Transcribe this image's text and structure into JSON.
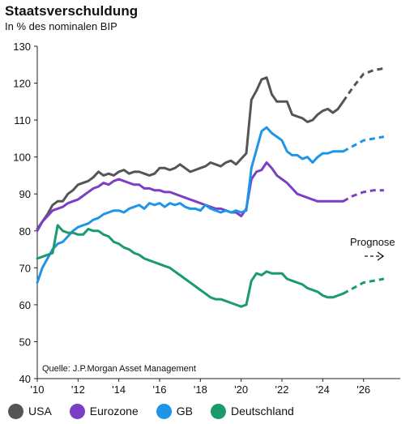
{
  "chart_data": {
    "type": "line",
    "title": "Staatsverschuldung",
    "subtitle": "In % des nominalen BIP",
    "source": "Quelle: J.P.Morgan Asset Management",
    "annotation": "Prognose",
    "forecast_start": 2025,
    "ylim": [
      40,
      130
    ],
    "yticks": [
      40,
      50,
      60,
      70,
      80,
      90,
      100,
      110,
      120,
      130
    ],
    "xlim": [
      2010,
      2027.8
    ],
    "xticks": [
      {
        "value": 2010,
        "label": "'10"
      },
      {
        "value": 2012,
        "label": "'12"
      },
      {
        "value": 2014,
        "label": "'14"
      },
      {
        "value": 2016,
        "label": "'16"
      },
      {
        "value": 2018,
        "label": "'18"
      },
      {
        "value": 2020,
        "label": "'20"
      },
      {
        "value": 2022,
        "label": "'22"
      },
      {
        "value": 2024,
        "label": "'24"
      },
      {
        "value": 2026,
        "label": "'26"
      }
    ],
    "grid": false,
    "legend_position": "bottom",
    "series": [
      {
        "name": "USA",
        "color": "#555555",
        "x": [
          2010,
          2010.25,
          2010.5,
          2010.75,
          2011,
          2011.25,
          2011.5,
          2011.75,
          2012,
          2012.25,
          2012.5,
          2012.75,
          2013,
          2013.25,
          2013.5,
          2013.75,
          2014,
          2014.25,
          2014.5,
          2014.75,
          2015,
          2015.25,
          2015.5,
          2015.75,
          2016,
          2016.25,
          2016.5,
          2016.75,
          2017,
          2017.25,
          2017.5,
          2017.75,
          2018,
          2018.25,
          2018.5,
          2018.75,
          2019,
          2019.25,
          2019.5,
          2019.75,
          2020,
          2020.25,
          2020.5,
          2020.75,
          2021,
          2021.25,
          2021.5,
          2021.75,
          2022,
          2022.25,
          2022.5,
          2022.75,
          2023,
          2023.25,
          2023.5,
          2023.75,
          2024,
          2024.25,
          2024.5,
          2024.75,
          2025,
          2025.5,
          2026,
          2026.5,
          2027
        ],
        "y": [
          80.5,
          82.5,
          84.5,
          87,
          88,
          88,
          90,
          91,
          92.5,
          93,
          93.5,
          94.5,
          96,
          95,
          95.5,
          95,
          96,
          96.5,
          95.5,
          96,
          96,
          95.5,
          95,
          95.5,
          97,
          97,
          96.5,
          97,
          98,
          97,
          96,
          96.5,
          97,
          97.5,
          98.5,
          98,
          97.5,
          98.5,
          99,
          98,
          99.5,
          101,
          115.5,
          118,
          121,
          121.5,
          117,
          115,
          115,
          115,
          111.5,
          111,
          110.5,
          109.5,
          110,
          111.5,
          112.5,
          113,
          112,
          113,
          115,
          119,
          122.5,
          123.5,
          124
        ]
      },
      {
        "name": "Eurozone",
        "color": "#7b3fc6",
        "x": [
          2010,
          2010.25,
          2010.5,
          2010.75,
          2011,
          2011.25,
          2011.5,
          2011.75,
          2012,
          2012.25,
          2012.5,
          2012.75,
          2013,
          2013.25,
          2013.5,
          2013.75,
          2014,
          2014.25,
          2014.5,
          2014.75,
          2015,
          2015.25,
          2015.5,
          2015.75,
          2016,
          2016.25,
          2016.5,
          2016.75,
          2017,
          2017.25,
          2017.5,
          2017.75,
          2018,
          2018.25,
          2018.5,
          2018.75,
          2019,
          2019.25,
          2019.5,
          2019.75,
          2020,
          2020.25,
          2020.5,
          2020.75,
          2021,
          2021.25,
          2021.5,
          2021.75,
          2022,
          2022.25,
          2022.5,
          2022.75,
          2023,
          2023.25,
          2023.5,
          2023.75,
          2024,
          2024.25,
          2024.5,
          2024.75,
          2025,
          2025.5,
          2026,
          2026.5,
          2027
        ],
        "y": [
          80,
          82.5,
          84,
          85.5,
          86,
          86.5,
          87.5,
          88,
          88.5,
          89.5,
          90.5,
          91.5,
          92,
          93,
          92.5,
          93.5,
          94,
          93.5,
          93,
          92.5,
          92.5,
          91.5,
          91.5,
          91,
          91,
          90.5,
          90.5,
          90,
          89.5,
          89,
          88.5,
          88,
          87.5,
          87,
          86.5,
          86,
          86,
          85.5,
          85,
          85,
          84,
          86,
          94,
          96,
          96.5,
          98.5,
          97,
          95,
          94,
          93,
          91.5,
          90,
          89.5,
          89,
          88.5,
          88,
          88,
          88,
          88,
          88,
          88,
          89.5,
          90.5,
          91,
          91
        ]
      },
      {
        "name": "GB",
        "color": "#1f95e8",
        "x": [
          2010,
          2010.25,
          2010.5,
          2010.75,
          2011,
          2011.25,
          2011.5,
          2011.75,
          2012,
          2012.25,
          2012.5,
          2012.75,
          2013,
          2013.25,
          2013.5,
          2013.75,
          2014,
          2014.25,
          2014.5,
          2014.75,
          2015,
          2015.25,
          2015.5,
          2015.75,
          2016,
          2016.25,
          2016.5,
          2016.75,
          2017,
          2017.25,
          2017.5,
          2017.75,
          2018,
          2018.25,
          2018.5,
          2018.75,
          2019,
          2019.25,
          2019.5,
          2019.75,
          2020,
          2020.25,
          2020.5,
          2020.75,
          2021,
          2021.25,
          2021.5,
          2021.75,
          2022,
          2022.25,
          2022.5,
          2022.75,
          2023,
          2023.25,
          2023.5,
          2023.75,
          2024,
          2024.25,
          2024.5,
          2024.75,
          2025,
          2025.5,
          2026,
          2026.5,
          2027
        ],
        "y": [
          66,
          70,
          72.5,
          75,
          76.5,
          77,
          78.5,
          80,
          81,
          81.5,
          82,
          83,
          83.5,
          84.5,
          85,
          85.5,
          85.5,
          85,
          86,
          86.5,
          87,
          86,
          87.5,
          87,
          87.5,
          86.5,
          87.5,
          87,
          87.5,
          86.5,
          86,
          86,
          85.5,
          87,
          86,
          85.5,
          85,
          85.5,
          85,
          85.5,
          85,
          85.5,
          97,
          102,
          107,
          108,
          106.5,
          105.5,
          104.5,
          101.5,
          100.5,
          100.5,
          99.5,
          100,
          98.5,
          100,
          101,
          101,
          101.5,
          101.5,
          101.5,
          103,
          104.5,
          105,
          105.5
        ]
      },
      {
        "name": "Deutschland",
        "color": "#1a9b6b",
        "x": [
          2010,
          2010.25,
          2010.5,
          2010.75,
          2011,
          2011.25,
          2011.5,
          2011.75,
          2012,
          2012.25,
          2012.5,
          2012.75,
          2013,
          2013.25,
          2013.5,
          2013.75,
          2014,
          2014.25,
          2014.5,
          2014.75,
          2015,
          2015.25,
          2015.5,
          2015.75,
          2016,
          2016.25,
          2016.5,
          2016.75,
          2017,
          2017.25,
          2017.5,
          2017.75,
          2018,
          2018.25,
          2018.5,
          2018.75,
          2019,
          2019.25,
          2019.5,
          2019.75,
          2020,
          2020.25,
          2020.5,
          2020.75,
          2021,
          2021.25,
          2021.5,
          2021.75,
          2022,
          2022.25,
          2022.5,
          2022.75,
          2023,
          2023.25,
          2023.5,
          2023.75,
          2024,
          2024.25,
          2024.5,
          2024.75,
          2025,
          2025.5,
          2026,
          2026.5,
          2027
        ],
        "y": [
          72.5,
          73,
          73.5,
          74,
          81.5,
          80,
          79.5,
          79.5,
          79,
          79,
          80.5,
          80,
          80,
          79,
          78.5,
          77,
          76.5,
          75.5,
          75,
          74,
          73.5,
          72.5,
          72,
          71.5,
          71,
          70.5,
          70,
          69,
          68,
          67,
          66,
          65,
          64,
          63,
          62,
          61.5,
          61.5,
          61,
          60.5,
          60,
          59.5,
          60,
          66.5,
          68.5,
          68,
          69,
          68.5,
          68.5,
          68.5,
          67,
          66.5,
          66,
          65.5,
          64.5,
          64,
          63.5,
          62.5,
          62,
          62,
          62.5,
          63,
          64.5,
          66,
          66.5,
          67
        ]
      }
    ]
  }
}
